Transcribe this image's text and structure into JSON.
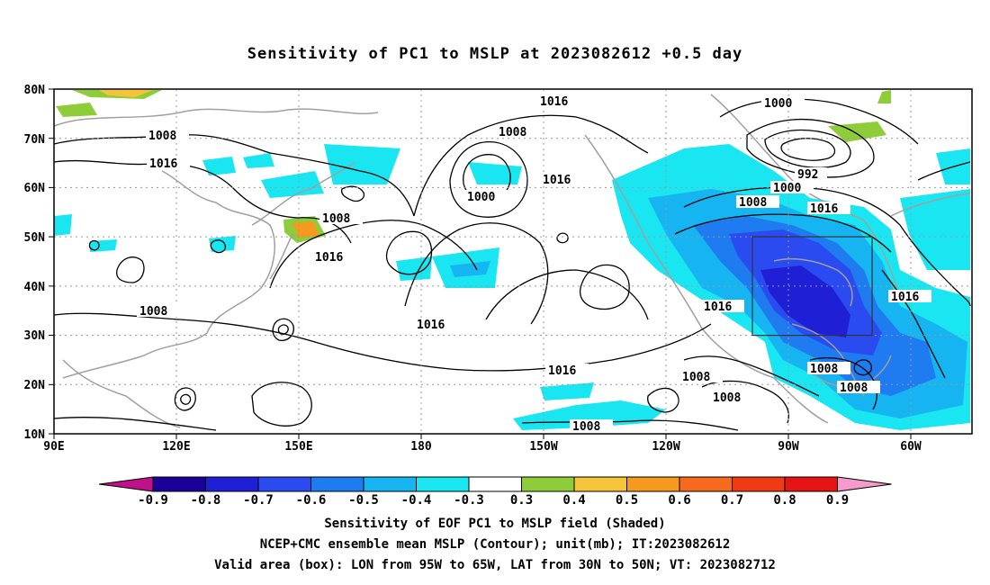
{
  "title": "Sensitivity of PC1 to MSLP at 2023082612 +0.5 day",
  "lat_labels": [
    "80N",
    "70N",
    "60N",
    "50N",
    "40N",
    "30N",
    "20N",
    "10N"
  ],
  "lon_labels": [
    "90E",
    "120E",
    "150E",
    "180",
    "150W",
    "120W",
    "90W",
    "60W"
  ],
  "contour_labels": [
    "1016",
    "1008",
    "1008",
    "1016",
    "1000",
    "1000",
    "992",
    "1000",
    "1008",
    "1016",
    "1016",
    "1016",
    "1008",
    "1016",
    "1016",
    "1008",
    "1016",
    "1008",
    "1008",
    "1008",
    "1008",
    "1008",
    "1016",
    "1008"
  ],
  "colorbar": {
    "ticks": [
      "-0.9",
      "-0.8",
      "-0.7",
      "-0.6",
      "-0.5",
      "-0.4",
      "-0.3",
      "0.3",
      "0.4",
      "0.5",
      "0.6",
      "0.7",
      "0.8",
      "0.9"
    ],
    "colors": [
      "#1a0099",
      "#1f1fd6",
      "#2a4bf0",
      "#1e7bf0",
      "#16b4f0",
      "#19e6f0",
      "#ffffff",
      "#8fcc3a",
      "#f5c43a",
      "#f59a1e",
      "#f56a1e",
      "#f03a14",
      "#e61414"
    ],
    "low_end_color": "#c0108a",
    "high_end_color": "#f59acc"
  },
  "box": {
    "lon_west": "95W",
    "lon_east": "65W",
    "lat_south": "30N",
    "lat_north": "50N"
  },
  "footer": {
    "line1": "Sensitivity of EOF PC1 to MSLP field (Shaded)",
    "line2": "NCEP+CMC ensemble mean MSLP (Contour); unit(mb); IT:2023082612",
    "line3": "Valid area (box): LON from 95W to 65W, LAT from 30N to 50N; VT: 2023082712"
  }
}
